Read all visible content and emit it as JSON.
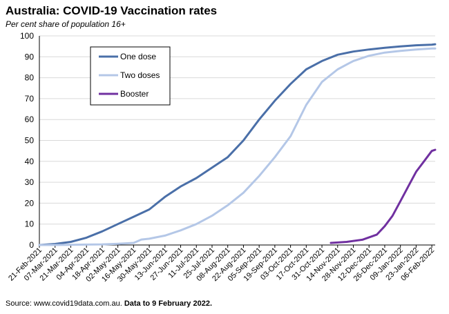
{
  "title": "Australia: COVID-19 Vaccination rates",
  "subtitle": "Per cent share of population 16+",
  "source": {
    "text": "Source: www.covid19data.com.au.",
    "note": "Data to 9 February 2022."
  },
  "chart_data": {
    "type": "line",
    "title": "Australia: COVID-19 Vaccination rates",
    "subtitle": "Per cent share of population 16+",
    "xlabel": "",
    "ylabel": "",
    "xlim": [
      "2021-02-21",
      "2022-02-09"
    ],
    "ylim": [
      0,
      100
    ],
    "yticks": [
      0,
      10,
      20,
      30,
      40,
      50,
      60,
      70,
      80,
      90,
      100
    ],
    "xtick_labels": [
      "21-Feb-2021",
      "07-Mar-2021",
      "21-Mar-2021",
      "04-Apr-2021",
      "18-Apr-2021",
      "02-May-2021",
      "16-May-2021",
      "30-May-2021",
      "13-Jun-2021",
      "27-Jun-2021",
      "11-Jul-2021",
      "25-Jul-2021",
      "08-Aug-2021",
      "22-Aug-2021",
      "05-Sep-2021",
      "19-Sep-2021",
      "03-Oct-2021",
      "17-Oct-2021",
      "31-Oct-2021",
      "14-Nov-2021",
      "28-Nov-2021",
      "12-Dec-2021",
      "26-Dec-2021",
      "09-Jan-2022",
      "23-Jan-2022",
      "06-Feb-2022"
    ],
    "grid": "horizontal",
    "legend_position": "top-left",
    "series": [
      {
        "name": "One dose",
        "color": "#4a6fa8",
        "points": [
          [
            "2021-02-21",
            0
          ],
          [
            "2021-03-07",
            0.5
          ],
          [
            "2021-03-21",
            1.5
          ],
          [
            "2021-04-04",
            3.5
          ],
          [
            "2021-04-18",
            6.5
          ],
          [
            "2021-05-02",
            10
          ],
          [
            "2021-05-16",
            13.5
          ],
          [
            "2021-05-30",
            17
          ],
          [
            "2021-06-13",
            23
          ],
          [
            "2021-06-27",
            28
          ],
          [
            "2021-07-11",
            32
          ],
          [
            "2021-07-25",
            37
          ],
          [
            "2021-08-08",
            42
          ],
          [
            "2021-08-22",
            50
          ],
          [
            "2021-09-05",
            60
          ],
          [
            "2021-09-19",
            69
          ],
          [
            "2021-10-03",
            77
          ],
          [
            "2021-10-17",
            84
          ],
          [
            "2021-10-31",
            88
          ],
          [
            "2021-11-14",
            91
          ],
          [
            "2021-11-28",
            92.5
          ],
          [
            "2021-12-12",
            93.5
          ],
          [
            "2021-12-26",
            94.3
          ],
          [
            "2022-01-09",
            95
          ],
          [
            "2022-01-23",
            95.5
          ],
          [
            "2022-02-06",
            95.8
          ],
          [
            "2022-02-09",
            96
          ]
        ]
      },
      {
        "name": "Two doses",
        "color": "#b4c7e7",
        "points": [
          [
            "2021-02-21",
            0
          ],
          [
            "2021-03-07",
            0
          ],
          [
            "2021-03-21",
            0.1
          ],
          [
            "2021-04-04",
            0.2
          ],
          [
            "2021-04-18",
            0.3
          ],
          [
            "2021-05-02",
            0.6
          ],
          [
            "2021-05-16",
            1
          ],
          [
            "2021-05-23",
            2.6
          ],
          [
            "2021-05-30",
            3
          ],
          [
            "2021-06-13",
            4.5
          ],
          [
            "2021-06-27",
            7
          ],
          [
            "2021-07-11",
            10
          ],
          [
            "2021-07-25",
            14
          ],
          [
            "2021-08-08",
            19
          ],
          [
            "2021-08-22",
            25
          ],
          [
            "2021-09-05",
            33
          ],
          [
            "2021-09-19",
            42
          ],
          [
            "2021-10-03",
            52
          ],
          [
            "2021-10-17",
            67
          ],
          [
            "2021-10-31",
            78
          ],
          [
            "2021-11-14",
            84
          ],
          [
            "2021-11-28",
            88
          ],
          [
            "2021-12-12",
            90.5
          ],
          [
            "2021-12-26",
            92
          ],
          [
            "2022-01-09",
            92.8
          ],
          [
            "2022-01-23",
            93.5
          ],
          [
            "2022-02-06",
            94
          ],
          [
            "2022-02-09",
            94
          ]
        ]
      },
      {
        "name": "Booster",
        "color": "#7030a0",
        "points": [
          [
            "2021-11-08",
            1
          ],
          [
            "2021-11-22",
            1.5
          ],
          [
            "2021-12-06",
            2.5
          ],
          [
            "2021-12-19",
            5
          ],
          [
            "2021-12-26",
            9
          ],
          [
            "2022-01-02",
            14
          ],
          [
            "2022-01-09",
            21
          ],
          [
            "2022-01-16",
            28
          ],
          [
            "2022-01-23",
            35
          ],
          [
            "2022-01-30",
            40
          ],
          [
            "2022-02-06",
            45
          ],
          [
            "2022-02-09",
            45.5
          ]
        ]
      }
    ]
  }
}
